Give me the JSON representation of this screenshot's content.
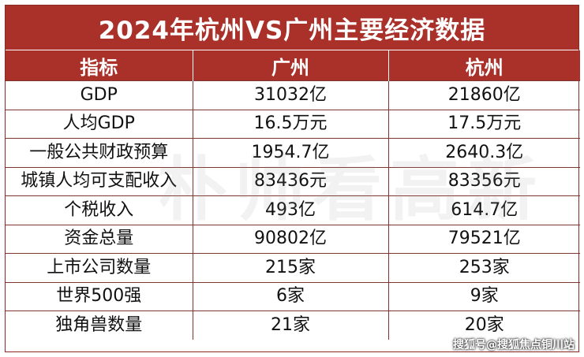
{
  "title": "2024年杭州VS广州主要经济数据",
  "headers": {
    "indicator": "指标",
    "guangzhou": "广州",
    "hangzhou": "杭州"
  },
  "rows": [
    {
      "indicator": "GDP",
      "guangzhou": "31032亿",
      "hangzhou": "21860亿"
    },
    {
      "indicator": "人均GDP",
      "guangzhou": "16.5万元",
      "hangzhou": "17.5万元"
    },
    {
      "indicator": "一般公共财政预算",
      "guangzhou": "1954.7亿",
      "hangzhou": "2640.3亿"
    },
    {
      "indicator": "城镇人均可支配收入",
      "guangzhou": "83436元",
      "hangzhou": "83356元"
    },
    {
      "indicator": "个税收入",
      "guangzhou": "493亿",
      "hangzhou": "614.7亿"
    },
    {
      "indicator": "资金总量",
      "guangzhou": "90802亿",
      "hangzhou": "79521亿"
    },
    {
      "indicator": "上市公司数量",
      "guangzhou": "215家",
      "hangzhou": "253家"
    },
    {
      "indicator": "世界500强",
      "guangzhou": "6家",
      "hangzhou": "9家"
    },
    {
      "indicator": "独角兽数量",
      "guangzhou": "21家",
      "hangzhou": "20家"
    }
  ],
  "watermark": "朴帅看高新",
  "source_credit": "搜狐号@搜狐焦点铜川站",
  "colors": {
    "header_bg": "#a9312a",
    "grid": "#7e3631",
    "text": "#111111"
  }
}
